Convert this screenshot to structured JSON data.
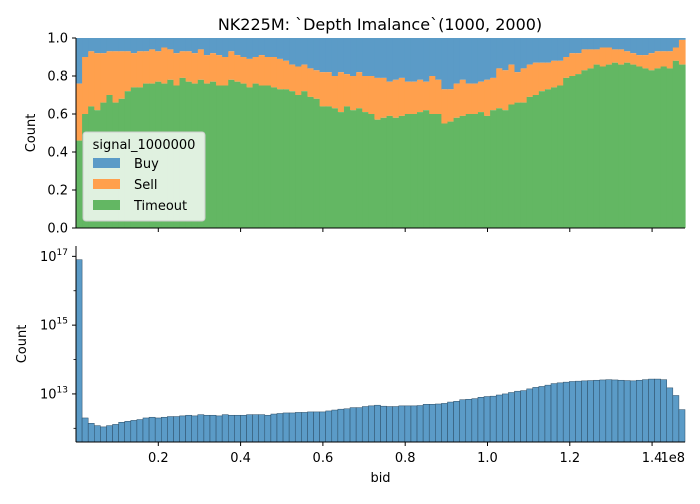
{
  "title": "NK225M: `Depth Imalance`(1000, 2000)",
  "colors": {
    "buy": "#5b9bc7",
    "sell": "#ffa04d",
    "timeout": "#63b763",
    "hist": "#5b9bc7"
  },
  "chart_data": [
    {
      "type": "area",
      "subtype": "stacked-fill-histogram",
      "title": "NK225M: `Depth Imalance`(1000, 2000)",
      "ylabel": "Count",
      "xlabel": "",
      "xlim": [
        0,
        148000000
      ],
      "ylim": [
        0,
        1
      ],
      "y_ticks": [
        "0.0",
        "0.2",
        "0.4",
        "0.6",
        "0.8",
        "1.0"
      ],
      "x_ticks": [
        "0.2",
        "0.4",
        "0.6",
        "0.8",
        "1.0",
        "1.2",
        "1.4"
      ],
      "x_tick_values": [
        0.2,
        0.4,
        0.6,
        0.8,
        1.0,
        1.2,
        1.4
      ],
      "x_tick_scale": 100000000,
      "legend": {
        "title": "signal_1000000",
        "placement": "center-left",
        "entries": [
          "Buy",
          "Sell",
          "Timeout"
        ]
      },
      "bins": 100,
      "timeout": [
        0.46,
        0.6,
        0.64,
        0.62,
        0.66,
        0.7,
        0.66,
        0.68,
        0.72,
        0.74,
        0.74,
        0.76,
        0.76,
        0.77,
        0.76,
        0.78,
        0.75,
        0.79,
        0.77,
        0.76,
        0.78,
        0.76,
        0.77,
        0.75,
        0.75,
        0.78,
        0.77,
        0.76,
        0.74,
        0.76,
        0.75,
        0.75,
        0.74,
        0.73,
        0.73,
        0.72,
        0.7,
        0.72,
        0.69,
        0.68,
        0.64,
        0.64,
        0.63,
        0.61,
        0.64,
        0.62,
        0.63,
        0.61,
        0.6,
        0.57,
        0.58,
        0.59,
        0.58,
        0.59,
        0.6,
        0.6,
        0.61,
        0.62,
        0.6,
        0.6,
        0.55,
        0.56,
        0.58,
        0.59,
        0.6,
        0.6,
        0.61,
        0.59,
        0.62,
        0.63,
        0.62,
        0.65,
        0.66,
        0.66,
        0.69,
        0.7,
        0.72,
        0.73,
        0.74,
        0.75,
        0.79,
        0.8,
        0.81,
        0.83,
        0.84,
        0.86,
        0.85,
        0.86,
        0.87,
        0.86,
        0.87,
        0.86,
        0.85,
        0.84,
        0.83,
        0.84,
        0.85,
        0.84,
        0.88,
        0.86
      ],
      "timeout_sell": [
        0.76,
        0.9,
        0.93,
        0.92,
        0.92,
        0.93,
        0.93,
        0.93,
        0.93,
        0.92,
        0.93,
        0.93,
        0.94,
        0.93,
        0.95,
        0.94,
        0.92,
        0.93,
        0.93,
        0.92,
        0.94,
        0.91,
        0.92,
        0.91,
        0.9,
        0.93,
        0.91,
        0.9,
        0.89,
        0.9,
        0.91,
        0.9,
        0.9,
        0.89,
        0.88,
        0.86,
        0.85,
        0.86,
        0.84,
        0.83,
        0.82,
        0.82,
        0.8,
        0.82,
        0.81,
        0.8,
        0.82,
        0.8,
        0.8,
        0.79,
        0.79,
        0.77,
        0.78,
        0.79,
        0.77,
        0.77,
        0.78,
        0.77,
        0.8,
        0.78,
        0.73,
        0.73,
        0.76,
        0.78,
        0.76,
        0.76,
        0.77,
        0.78,
        0.79,
        0.84,
        0.83,
        0.86,
        0.82,
        0.84,
        0.86,
        0.87,
        0.87,
        0.87,
        0.88,
        0.88,
        0.9,
        0.92,
        0.92,
        0.94,
        0.94,
        0.94,
        0.95,
        0.95,
        0.94,
        0.94,
        0.93,
        0.92,
        0.91,
        0.91,
        0.92,
        0.93,
        0.93,
        0.93,
        0.95,
        0.99
      ]
    },
    {
      "type": "bar",
      "subtype": "histogram",
      "ylabel": "Count",
      "xlabel": "bid",
      "x_offset_label": "1e8",
      "xlim": [
        0,
        148000000
      ],
      "ylim": [
        400000000000,
        200000000000000000
      ],
      "yscale": "log",
      "y_ticks": [
        {
          "base": "10",
          "exp": "13",
          "value": 10000000000000
        },
        {
          "base": "10",
          "exp": "15",
          "value": 1000000000000000
        },
        {
          "base": "10",
          "exp": "17",
          "value": 100000000000000000
        }
      ],
      "x_ticks": [
        "0.2",
        "0.4",
        "0.6",
        "0.8",
        "1.0",
        "1.2",
        "1.4"
      ],
      "x_tick_values": [
        0.2,
        0.4,
        0.6,
        0.8,
        1.0,
        1.2,
        1.4
      ],
      "x_tick_scale": 100000000,
      "bins": 100,
      "values": [
        80000000000000000,
        2000000000000,
        1400000000000,
        1200000000000,
        1100000000000,
        1200000000000,
        1300000000000,
        1500000000000,
        1600000000000,
        1700000000000,
        1800000000000,
        2000000000000,
        2100000000000,
        2000000000000,
        2100000000000,
        2200000000000,
        2200000000000,
        2300000000000,
        2400000000000,
        2300000000000,
        2500000000000,
        2400000000000,
        2400000000000,
        2300000000000,
        2500000000000,
        2400000000000,
        2400000000000,
        2400000000000,
        2500000000000,
        2500000000000,
        2500000000000,
        2400000000000,
        2600000000000,
        2700000000000,
        2800000000000,
        2800000000000,
        2900000000000,
        2900000000000,
        3000000000000,
        3000000000000,
        3000000000000,
        3200000000000,
        3400000000000,
        3600000000000,
        3700000000000,
        4000000000000,
        4000000000000,
        4300000000000,
        4500000000000,
        4700000000000,
        4400000000000,
        4300000000000,
        4300000000000,
        4500000000000,
        4500000000000,
        4500000000000,
        4600000000000,
        5000000000000,
        5000000000000,
        5100000000000,
        5300000000000,
        5800000000000,
        6100000000000,
        6800000000000,
        7000000000000,
        7300000000000,
        8000000000000,
        8400000000000,
        8600000000000,
        9300000000000,
        10000000000000,
        11000000000000,
        12000000000000,
        12500000000000,
        14000000000000,
        15500000000000,
        16500000000000,
        18000000000000,
        20000000000000,
        21000000000000,
        22000000000000,
        23000000000000,
        23500000000000,
        24000000000000,
        24500000000000,
        25000000000000,
        25500000000000,
        26000000000000,
        25500000000000,
        25000000000000,
        24500000000000,
        24000000000000,
        25000000000000,
        26000000000000,
        27000000000000,
        27000000000000,
        26000000000000,
        15000000000000,
        9000000000000,
        3500000000000
      ]
    }
  ]
}
